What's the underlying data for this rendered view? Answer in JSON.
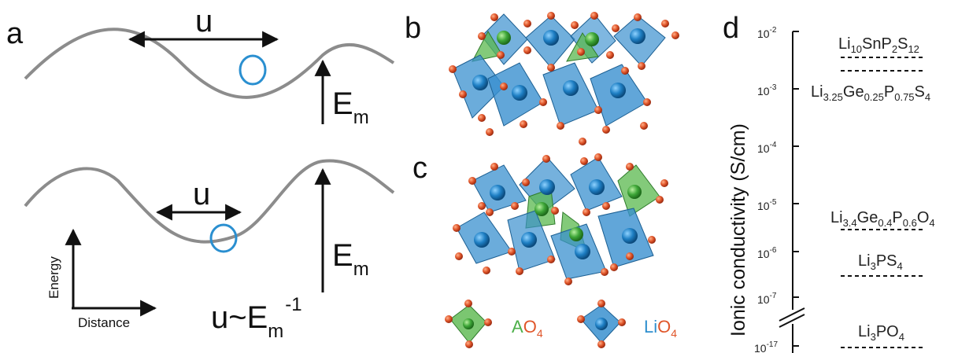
{
  "panels": {
    "a": {
      "letter": "a",
      "u_label": "u",
      "em_main": "E",
      "em_sub": "m",
      "relation_main": "u~E",
      "relation_sub": "m",
      "relation_sup": "-1",
      "axis_energy": "Energy",
      "axis_distance": "Distance",
      "curve_color": "#8c8c8c",
      "ion_color": "#2a8fd0"
    },
    "b": {
      "letter": "b"
    },
    "c": {
      "letter": "c"
    },
    "legend": {
      "ao4_prefix": "A",
      "ao4_main": "O",
      "ao4_sub": "4",
      "lio4_prefix": "Li",
      "lio4_main": "O",
      "lio4_sub": "4",
      "green": "#4db04a",
      "blue": "#2f8fcf",
      "red": "#e0562a"
    },
    "d": {
      "letter": "d",
      "ylabel": "Ionic conductivity (S/cm)",
      "ticks": [
        {
          "base": "10",
          "exp": "-2"
        },
        {
          "base": "10",
          "exp": "-3"
        },
        {
          "base": "10",
          "exp": "-4"
        },
        {
          "base": "10",
          "exp": "-5"
        },
        {
          "base": "10",
          "exp": "-6"
        },
        {
          "base": "10",
          "exp": "-7"
        },
        {
          "base": "10",
          "exp": "-17"
        }
      ],
      "compounds": {
        "lsps": [
          "Li",
          "10",
          "SnP",
          "2",
          "S",
          "12"
        ],
        "lgps": [
          "Li",
          "3.25",
          "Ge",
          "0.25",
          "P",
          "0.75",
          "S",
          "4"
        ],
        "lgpo": [
          "Li",
          "3.4",
          "Ge",
          "0.4",
          "P",
          "0.6",
          "O",
          "4"
        ],
        "lps": [
          "Li",
          "3",
          "PS",
          "4"
        ],
        "lpo": [
          "Li",
          "3",
          "PO",
          "4"
        ]
      }
    }
  }
}
